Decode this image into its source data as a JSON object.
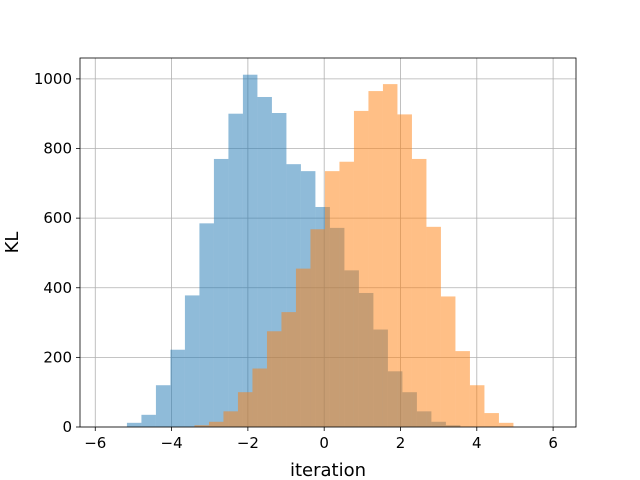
{
  "chart_data": {
    "type": "bar",
    "title": "",
    "xlabel": "iteration",
    "ylabel": "KL",
    "xlim": [
      -6.4,
      6.6
    ],
    "ylim": [
      0,
      1060
    ],
    "grid": true,
    "xticks": [
      -6,
      -4,
      -2,
      0,
      2,
      4,
      6
    ],
    "xtick_labels": [
      "−6",
      "−4",
      "−2",
      "0",
      "2",
      "4",
      "6"
    ],
    "yticks": [
      0,
      200,
      400,
      600,
      800,
      1000
    ],
    "ytick_labels": [
      "0",
      "200",
      "400",
      "600",
      "800",
      "1000"
    ],
    "bin_width": 0.38,
    "series": [
      {
        "color": "#1f77b4",
        "opacity": 0.5,
        "bins": [
          {
            "x0": -5.17,
            "count": 12
          },
          {
            "x0": -4.79,
            "count": 35
          },
          {
            "x0": -4.41,
            "count": 120
          },
          {
            "x0": -4.03,
            "count": 222
          },
          {
            "x0": -3.65,
            "count": 378
          },
          {
            "x0": -3.27,
            "count": 585
          },
          {
            "x0": -2.89,
            "count": 770
          },
          {
            "x0": -2.51,
            "count": 900
          },
          {
            "x0": -2.13,
            "count": 1012
          },
          {
            "x0": -1.75,
            "count": 948
          },
          {
            "x0": -1.37,
            "count": 902
          },
          {
            "x0": -0.99,
            "count": 755
          },
          {
            "x0": -0.61,
            "count": 735
          },
          {
            "x0": -0.23,
            "count": 632
          },
          {
            "x0": 0.15,
            "count": 572
          },
          {
            "x0": 0.53,
            "count": 450
          },
          {
            "x0": 0.91,
            "count": 385
          },
          {
            "x0": 1.29,
            "count": 280
          },
          {
            "x0": 1.67,
            "count": 160
          },
          {
            "x0": 2.05,
            "count": 100
          },
          {
            "x0": 2.43,
            "count": 45
          },
          {
            "x0": 2.81,
            "count": 15
          },
          {
            "x0": 3.19,
            "count": 5
          }
        ]
      },
      {
        "color": "#ff7f0e",
        "opacity": 0.5,
        "bins": [
          {
            "x0": -3.4,
            "count": 5
          },
          {
            "x0": -3.02,
            "count": 15
          },
          {
            "x0": -2.64,
            "count": 45
          },
          {
            "x0": -2.26,
            "count": 100
          },
          {
            "x0": -1.88,
            "count": 168
          },
          {
            "x0": -1.5,
            "count": 275
          },
          {
            "x0": -1.12,
            "count": 330
          },
          {
            "x0": -0.74,
            "count": 455
          },
          {
            "x0": -0.36,
            "count": 568
          },
          {
            "x0": 0.02,
            "count": 735
          },
          {
            "x0": 0.4,
            "count": 762
          },
          {
            "x0": 0.78,
            "count": 908
          },
          {
            "x0": 1.16,
            "count": 965
          },
          {
            "x0": 1.54,
            "count": 985
          },
          {
            "x0": 1.92,
            "count": 898
          },
          {
            "x0": 2.3,
            "count": 770
          },
          {
            "x0": 2.68,
            "count": 575
          },
          {
            "x0": 3.06,
            "count": 375
          },
          {
            "x0": 3.44,
            "count": 218
          },
          {
            "x0": 3.82,
            "count": 120
          },
          {
            "x0": 4.2,
            "count": 40
          },
          {
            "x0": 4.58,
            "count": 12
          }
        ]
      }
    ]
  }
}
